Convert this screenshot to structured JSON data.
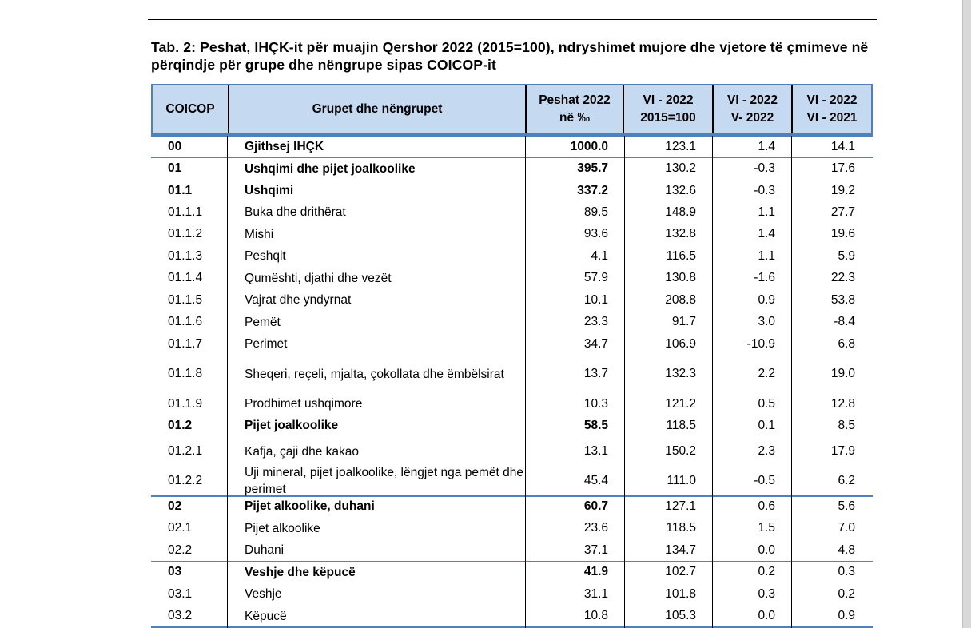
{
  "title": "Tab. 2: Peshat, IHÇK-it për muajin Qershor 2022 (2015=100), ndryshimet mujore dhe vjetore të çmimeve në përqindje për grupe dhe nëngrupe sipas COICOP-it",
  "header": {
    "coicop": "COICOP",
    "groups": "Grupet dhe nëngrupet",
    "weights_1": "Peshat 2022",
    "weights_2": "në ‰",
    "index_1": "VI - 2022",
    "index_2": "2015=100",
    "monthly_1": "VI - 2022",
    "monthly_2": "V- 2022",
    "annual_1": "VI - 2022",
    "annual_2": "VI - 2021"
  },
  "rows": [
    {
      "code": "00",
      "name": "Gjithsej IHÇK",
      "weight": "1000.0",
      "index": "123.1",
      "monthly": "1.4",
      "annual": "14.1",
      "bold": true
    },
    {
      "code": "01",
      "name": "Ushqimi dhe pijet joalkoolike",
      "weight": "395.7",
      "index": "130.2",
      "monthly": "-0.3",
      "annual": "17.6",
      "bold": true
    },
    {
      "code": "01.1",
      "name": "Ushqimi",
      "weight": "337.2",
      "index": "132.6",
      "monthly": "-0.3",
      "annual": "19.2",
      "bold": true
    },
    {
      "code": "01.1.1",
      "name": "Buka dhe drithërat",
      "weight": "89.5",
      "index": "148.9",
      "monthly": "1.1",
      "annual": "27.7",
      "bold": false
    },
    {
      "code": "01.1.2",
      "name": "Mishi",
      "weight": "93.6",
      "index": "132.8",
      "monthly": "1.4",
      "annual": "19.6",
      "bold": false
    },
    {
      "code": "01.1.3",
      "name": "Peshqit",
      "weight": "4.1",
      "index": "116.5",
      "monthly": "1.1",
      "annual": "5.9",
      "bold": false
    },
    {
      "code": "01.1.4",
      "name": "Qumështi, djathi dhe vezët",
      "weight": "57.9",
      "index": "130.8",
      "monthly": "-1.6",
      "annual": "22.3",
      "bold": false
    },
    {
      "code": "01.1.5",
      "name": "Vajrat dhe yndyrnat",
      "weight": "10.1",
      "index": "208.8",
      "monthly": "0.9",
      "annual": "53.8",
      "bold": false
    },
    {
      "code": "01.1.6",
      "name": "Pemët",
      "weight": "23.3",
      "index": "91.7",
      "monthly": "3.0",
      "annual": "-8.4",
      "bold": false
    },
    {
      "code": "01.1.7",
      "name": "Perimet",
      "weight": "34.7",
      "index": "106.9",
      "monthly": "-10.9",
      "annual": "6.8",
      "bold": false
    },
    {
      "code": "01.1.8",
      "name": "Sheqeri, reçeli, mjalta, çokollata dhe ëmbëlsirat",
      "weight": "13.7",
      "index": "132.3",
      "monthly": "2.2",
      "annual": "19.0",
      "bold": false
    },
    {
      "code": "01.1.9",
      "name": "Prodhimet ushqimore",
      "weight": "10.3",
      "index": "121.2",
      "monthly": "0.5",
      "annual": "12.8",
      "bold": false
    },
    {
      "code": "01.2",
      "name": "Pijet joalkoolike",
      "weight": "58.5",
      "index": "118.5",
      "monthly": "0.1",
      "annual": "8.5",
      "bold": true
    },
    {
      "code": "01.2.1",
      "name": "Kafja, çaji dhe kakao",
      "weight": "13.1",
      "index": "150.2",
      "monthly": "2.3",
      "annual": "17.9",
      "bold": false
    },
    {
      "code": "01.2.2",
      "name": "Uji mineral, pijet joalkoolike, lëngjet nga pemët dhe perimet",
      "weight": "45.4",
      "index": "111.0",
      "monthly": "-0.5",
      "annual": "6.2",
      "bold": false
    },
    {
      "code": "02",
      "name": "Pijet alkoolike, duhani",
      "weight": "60.7",
      "index": "127.1",
      "monthly": "0.6",
      "annual": "5.6",
      "bold": true
    },
    {
      "code": "02.1",
      "name": "Pijet alkoolike",
      "weight": "23.6",
      "index": "118.5",
      "monthly": "1.5",
      "annual": "7.0",
      "bold": false
    },
    {
      "code": "02.2",
      "name": "Duhani",
      "weight": "37.1",
      "index": "134.7",
      "monthly": "0.0",
      "annual": "4.8",
      "bold": false
    },
    {
      "code": "03",
      "name": "Veshje dhe këpucë",
      "weight": "41.9",
      "index": "102.7",
      "monthly": "0.2",
      "annual": "0.3",
      "bold": true
    },
    {
      "code": "03.1",
      "name": "Veshje",
      "weight": "31.1",
      "index": "101.8",
      "monthly": "0.3",
      "annual": "0.2",
      "bold": false
    },
    {
      "code": "03.2",
      "name": "Këpucë",
      "weight": "10.8",
      "index": "105.3",
      "monthly": "0.0",
      "annual": "0.9",
      "bold": false
    }
  ]
}
